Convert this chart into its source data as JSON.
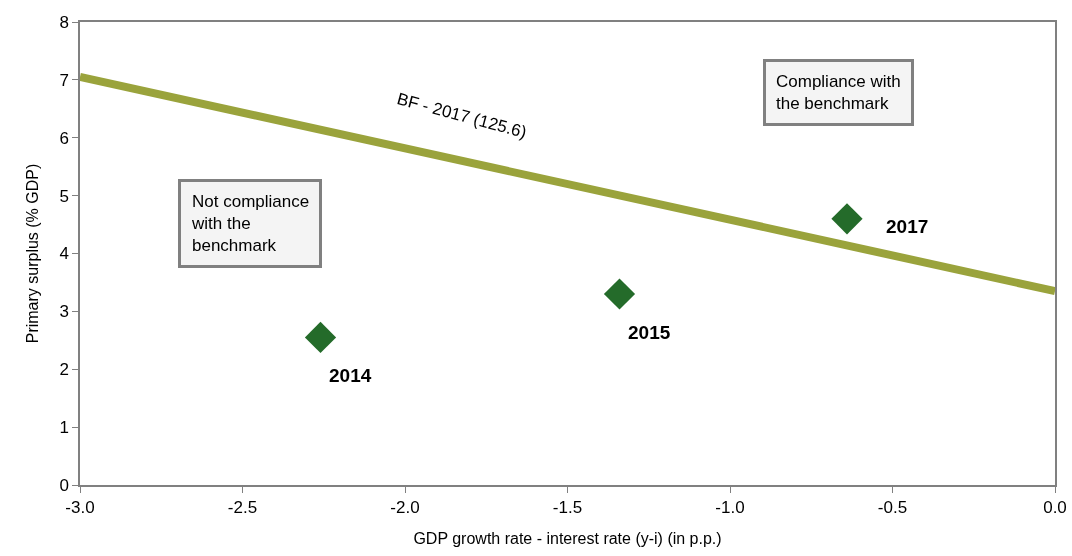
{
  "chart_data": {
    "type": "scatter",
    "xlabel": "GDP growth rate - interest rate (y-i) (in p.p.)",
    "ylabel": "Primary surplus (% GDP)",
    "xlim": [
      -3.0,
      0.0
    ],
    "xticks": [
      {
        "value": -3,
        "label": "-3.0"
      },
      {
        "value": -2.5,
        "label": "-2.5"
      },
      {
        "value": -2,
        "label": "-2.0"
      },
      {
        "value": -1.5,
        "label": "-1.5"
      },
      {
        "value": -1,
        "label": "-1.0"
      },
      {
        "value": -0.5,
        "label": "-0.5"
      },
      {
        "value": 0,
        "label": "0.0"
      }
    ],
    "ylim": [
      0,
      8
    ],
    "yticks": [
      0,
      1,
      2,
      3,
      4,
      5,
      6,
      7,
      8
    ],
    "grid": false,
    "series": [
      {
        "type": "line",
        "color": "#9aa33c",
        "x": [
          -3.0,
          0.0
        ],
        "values": [
          7.05,
          3.35
        ],
        "line_style": "solid",
        "marker": "none"
      },
      {
        "color": "#246b2a",
        "x": [
          -2.26,
          -1.34,
          -0.64
        ],
        "values": [
          2.55,
          3.3,
          4.6
        ],
        "marker": "diamond"
      }
    ],
    "annotations": [
      "BF - 2017 (125.6)",
      {
        "text": "2014",
        "x": -2.26,
        "y": 2.55
      },
      {
        "text": "2015",
        "x": -1.34,
        "y": 3.3
      },
      {
        "text": "2017",
        "x": -0.64,
        "y": 4.6
      },
      "Not compliance with the benchmark",
      "Compliance with the benchmark"
    ]
  }
}
